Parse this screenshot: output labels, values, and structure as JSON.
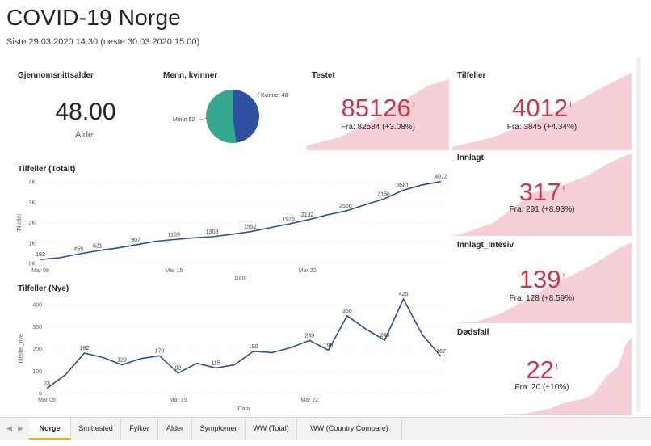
{
  "header": {
    "title": "COVID-19 Norge",
    "subtitle": "Siste 29.03.2020 14.30 (neste 30.03.2020 15.00)"
  },
  "average_age": {
    "title": "Gjennomsnittsalder",
    "value": "48.00",
    "label": "Alder"
  },
  "gender_pie": {
    "title": "Menn, kvinner",
    "label_women": "Kvinner 48",
    "label_men": "Menn 52",
    "color_women": "#2f4fa3",
    "color_men": "#33a88f"
  },
  "kpis": {
    "testet": {
      "title": "Testet",
      "value": "85126",
      "indicator": "!",
      "sub": "Fra: 82584 (+3.08%)"
    },
    "tilfeller": {
      "title": "Tilfeller",
      "value": "4012",
      "indicator": "!",
      "sub": "Fra: 3845 (+4.34%)"
    },
    "innlagt": {
      "title": "Innlagt",
      "value": "317",
      "indicator": "!",
      "sub": "Fra: 291 (+8.93%)"
    },
    "intensiv": {
      "title": "Innlagt_Intesiv",
      "value": "139",
      "indicator": "!",
      "sub": "Fra: 128 (+8.59%)"
    },
    "dodsfall": {
      "title": "Dødsfall",
      "value": "22",
      "indicator": "!",
      "sub": "Fra: 20 (+10%)"
    },
    "accent": "#d0344b",
    "trend_fill": "#f5d0d6"
  },
  "chart_total": {
    "title": "Tilfeller (Totalt)",
    "ylabel": "Tilfeller",
    "xlabel": "Dato",
    "line_color": "#2f4f8f"
  },
  "chart_new": {
    "title": "Tilfeller (Nye)",
    "ylabel": "Tilfeller_nye",
    "xlabel": "Dato",
    "line_color": "#2f4f8f"
  },
  "chart_data": [
    {
      "type": "line",
      "title": "Tilfeller (Totalt)",
      "xlabel": "Dato",
      "ylabel": "Tilfeller",
      "ylim": [
        0,
        4000
      ],
      "yticks": [
        "0K",
        "1K",
        "2K",
        "3K",
        "4K"
      ],
      "xticks": [
        "Mar 08",
        "Mar 15",
        "Mar 22"
      ],
      "x": [
        0,
        1,
        2,
        3,
        4,
        5,
        6,
        7,
        8,
        9,
        10,
        11,
        12,
        13,
        14,
        15,
        16,
        17,
        18,
        19,
        20,
        21
      ],
      "values": [
        192,
        277,
        459,
        621,
        750,
        907,
        1077,
        1169,
        1252,
        1308,
        1423,
        1552,
        1742,
        1926,
        2132,
        2371,
        2566,
        2866,
        3156,
        3581,
        3845,
        4012
      ],
      "labels": [
        {
          "i": 0,
          "text": "192"
        },
        {
          "i": 2,
          "text": "459"
        },
        {
          "i": 3,
          "text": "621"
        },
        {
          "i": 5,
          "text": "907"
        },
        {
          "i": 7,
          "text": "1169"
        },
        {
          "i": 9,
          "text": "1308"
        },
        {
          "i": 11,
          "text": "1552"
        },
        {
          "i": 13,
          "text": "1926"
        },
        {
          "i": 14,
          "text": "2132"
        },
        {
          "i": 16,
          "text": "2566"
        },
        {
          "i": 18,
          "text": "3156"
        },
        {
          "i": 19,
          "text": "3581"
        },
        {
          "i": 21,
          "text": "4012"
        }
      ]
    },
    {
      "type": "line",
      "title": "Tilfeller (Nye)",
      "xlabel": "Dato",
      "ylabel": "Tilfeller_nye",
      "ylim": [
        0,
        400
      ],
      "yticks": [
        "0",
        "100",
        "200",
        "300",
        "400"
      ],
      "xticks": [
        "Mar 08",
        "Mar 15",
        "Mar 22"
      ],
      "x": [
        0,
        1,
        2,
        3,
        4,
        5,
        6,
        7,
        8,
        9,
        10,
        11,
        12,
        13,
        14,
        15,
        16,
        17,
        18,
        19,
        20,
        21
      ],
      "values": [
        23,
        85,
        182,
        162,
        129,
        157,
        170,
        92,
        136,
        115,
        129,
        190,
        184,
        206,
        239,
        195,
        350,
        290,
        240,
        425,
        265,
        167
      ],
      "labels": [
        {
          "i": 0,
          "text": "23"
        },
        {
          "i": 2,
          "text": "182"
        },
        {
          "i": 4,
          "text": "129"
        },
        {
          "i": 6,
          "text": "170"
        },
        {
          "i": 7,
          "text": "92"
        },
        {
          "i": 9,
          "text": "115"
        },
        {
          "i": 11,
          "text": "190"
        },
        {
          "i": 14,
          "text": "239"
        },
        {
          "i": 15,
          "text": "195"
        },
        {
          "i": 16,
          "text": "350"
        },
        {
          "i": 18,
          "text": "240"
        },
        {
          "i": 19,
          "text": "425"
        },
        {
          "i": 21,
          "text": "167"
        }
      ]
    },
    {
      "type": "pie",
      "title": "Menn, kvinner",
      "categories": [
        "Kvinner",
        "Menn"
      ],
      "values": [
        48,
        52
      ]
    }
  ],
  "tabs": [
    {
      "label": "Norge",
      "active": true
    },
    {
      "label": "Smittested",
      "active": false
    },
    {
      "label": "Fylker",
      "active": false
    },
    {
      "label": "Alder",
      "active": false
    },
    {
      "label": "Symptomer",
      "active": false
    },
    {
      "label": "WW (Total)",
      "active": false
    },
    {
      "label": "WW (Country Compare)",
      "active": false
    }
  ]
}
